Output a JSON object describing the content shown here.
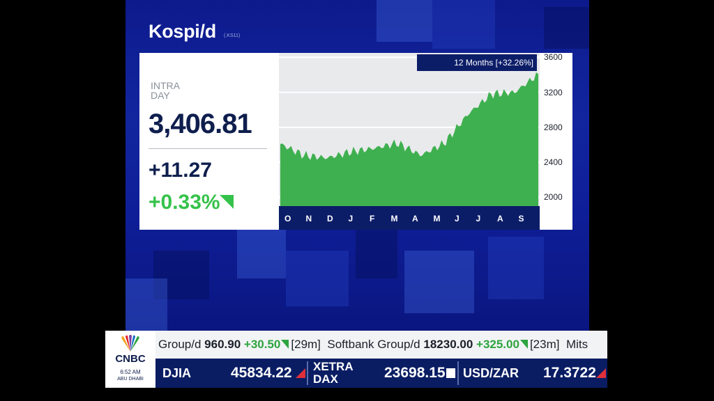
{
  "header": {
    "title": "Kospi/d",
    "subtitle": "(.KS11)"
  },
  "quote": {
    "label_line1": "INTRA",
    "label_line2": "DAY",
    "price": "3,406.81",
    "change": "+11.27",
    "percent": "+0.33%"
  },
  "chart": {
    "range_label": "12 Months [+32.26%]",
    "y_ticks": [
      "3600",
      "3200",
      "2800",
      "2400",
      "2000"
    ],
    "x_ticks": [
      "O",
      "N",
      "D",
      "J",
      "F",
      "M",
      "A",
      "M",
      "J",
      "J",
      "A",
      "S"
    ]
  },
  "chart_data": {
    "type": "area",
    "title": "Kospi/d",
    "ylim": [
      1900,
      3650
    ],
    "x": [
      "O",
      "N",
      "D",
      "J",
      "F",
      "M",
      "A",
      "M",
      "J",
      "J",
      "A",
      "S"
    ],
    "values": [
      2610,
      2480,
      2450,
      2520,
      2560,
      2620,
      2480,
      2620,
      2950,
      3180,
      3200,
      3406.81
    ],
    "series_color": "#3fb04f"
  },
  "ticker": {
    "brand": "CNBC",
    "time": "6:52 AM",
    "city": "ABU DHABI",
    "row1": [
      {
        "name": "Group/d",
        "value": "960.90",
        "change": "+30.50",
        "age": "[29m]"
      },
      {
        "name": "Softbank Group/d",
        "value": "18230.00",
        "change": "+325.00",
        "age": "[23m]"
      },
      {
        "name": "Mits"
      }
    ],
    "row2": [
      {
        "name": "DJIA",
        "value": "45834.22"
      },
      {
        "name_line1": "XETRA",
        "name_line2": "DAX",
        "value": "23698.15"
      },
      {
        "name": "USD/ZAR",
        "value": "17.3722"
      }
    ]
  }
}
